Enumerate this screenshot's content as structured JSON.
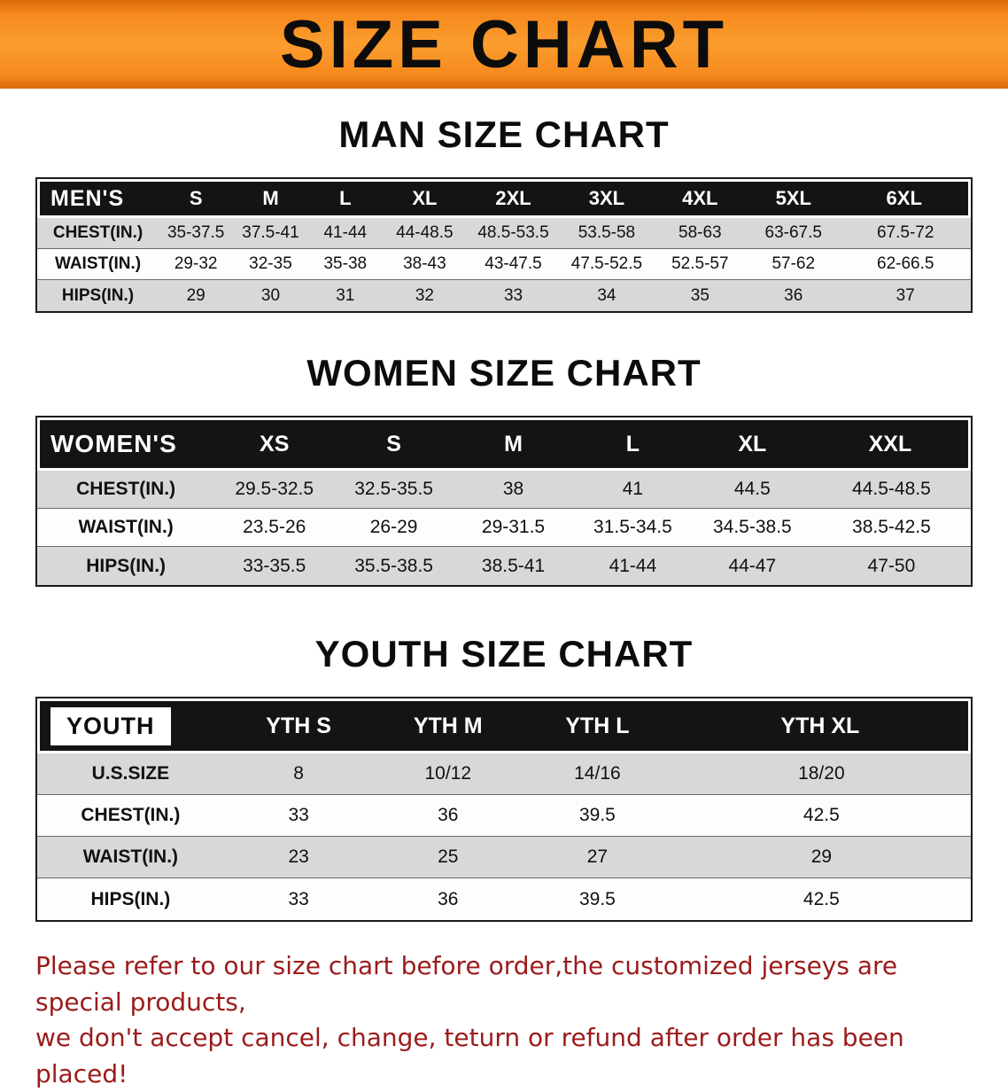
{
  "banner": {
    "title": "SIZE CHART"
  },
  "colors": {
    "banner_bg": "#f68a1e",
    "table_header_bg": "#141414",
    "row_stripe": "#d8d8d8",
    "disclaimer_color": "#9b1b1b"
  },
  "chart_data": [
    {
      "type": "table",
      "title": "MAN SIZE CHART",
      "columns": [
        "MEN'S",
        "S",
        "M",
        "L",
        "XL",
        "2XL",
        "3XL",
        "4XL",
        "5XL",
        "6XL"
      ],
      "rows": [
        [
          "CHEST(IN.)",
          "35-37.5",
          "37.5-41",
          "41-44",
          "44-48.5",
          "48.5-53.5",
          "53.5-58",
          "58-63",
          "63-67.5",
          "67.5-72"
        ],
        [
          "WAIST(IN.)",
          "29-32",
          "32-35",
          "35-38",
          "38-43",
          "43-47.5",
          "47.5-52.5",
          "52.5-57",
          "57-62",
          "62-66.5"
        ],
        [
          "HIPS(IN.)",
          "29",
          "30",
          "31",
          "32",
          "33",
          "34",
          "35",
          "36",
          "37"
        ]
      ]
    },
    {
      "type": "table",
      "title": "WOMEN SIZE CHART",
      "columns": [
        "WOMEN'S",
        "XS",
        "S",
        "M",
        "L",
        "XL",
        "XXL"
      ],
      "rows": [
        [
          "CHEST(IN.)",
          "29.5-32.5",
          "32.5-35.5",
          "38",
          "41",
          "44.5",
          "44.5-48.5"
        ],
        [
          "WAIST(IN.)",
          "23.5-26",
          "26-29",
          "29-31.5",
          "31.5-34.5",
          "34.5-38.5",
          "38.5-42.5"
        ],
        [
          "HIPS(IN.)",
          "33-35.5",
          "35.5-38.5",
          "38.5-41",
          "41-44",
          "44-47",
          "47-50"
        ]
      ]
    },
    {
      "type": "table",
      "title": "YOUTH SIZE CHART",
      "columns": [
        "YOUTH",
        "YTH S",
        "YTH M",
        "YTH L",
        "YTH XL"
      ],
      "rows": [
        [
          "U.S.SIZE",
          "8",
          "10/12",
          "14/16",
          "18/20"
        ],
        [
          "CHEST(IN.)",
          "33",
          "36",
          "39.5",
          "42.5"
        ],
        [
          "WAIST(IN.)",
          "23",
          "25",
          "27",
          "29"
        ],
        [
          "HIPS(IN.)",
          "33",
          "36",
          "39.5",
          "42.5"
        ]
      ]
    }
  ],
  "footer": {
    "line1": "Please refer to our size chart before order,the customized jerseys are special products,",
    "line2": "we don't accept cancel, change, teturn or refund after order has been placed!"
  }
}
